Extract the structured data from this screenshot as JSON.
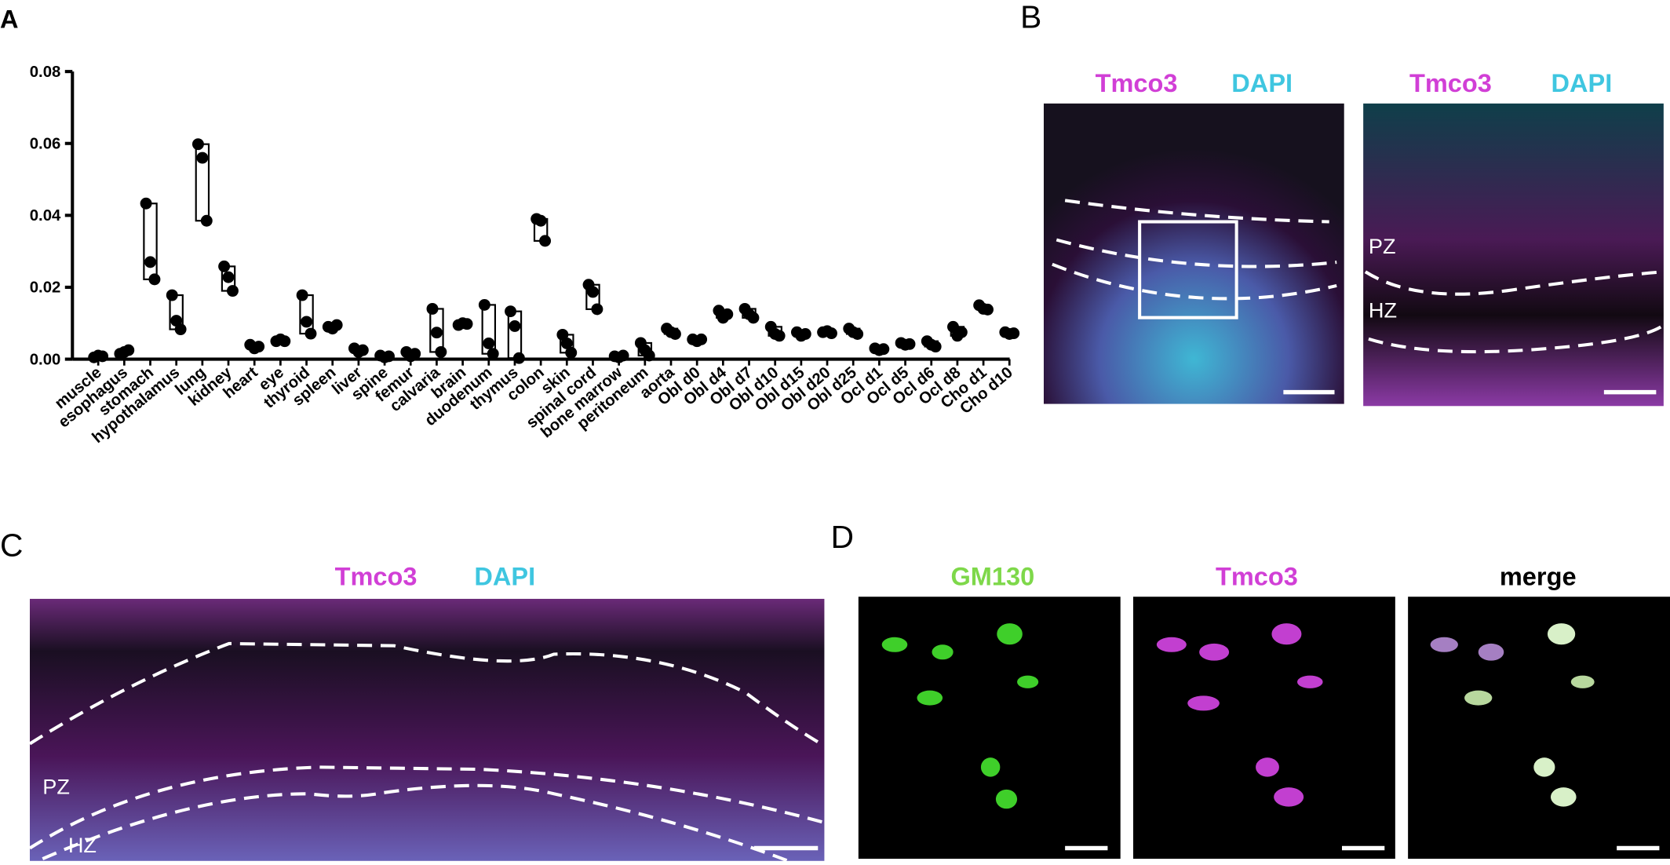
{
  "chart_data": {
    "type": "floating-box",
    "panel": "A",
    "categories": [
      "muscle",
      "esophagus",
      "stomach",
      "hypothalamus",
      "lung",
      "kidney",
      "heart",
      "eye",
      "thyroid",
      "spleen",
      "liver",
      "spine",
      "femur",
      "calvaria",
      "brain",
      "duodenum",
      "thymus",
      "colon",
      "skin",
      "spinal cord",
      "bone marrow",
      "peritoneum",
      "aorta",
      "Obl d0",
      "Obl d4",
      "Obl d7",
      "Obl d10",
      "Obl d15",
      "Obl d20",
      "Obl d25",
      "Ocl d1",
      "Ocl d5",
      "Ocl d6",
      "Ocl d8",
      "Cho d1",
      "Cho d10"
    ],
    "values": [
      [
        0.0005,
        0.001,
        0.0008
      ],
      [
        0.0015,
        0.002,
        0.0025
      ],
      [
        0.0433,
        0.027,
        0.0222
      ],
      [
        0.0178,
        0.0107,
        0.0083
      ],
      [
        0.0598,
        0.056,
        0.0385
      ],
      [
        0.0258,
        0.0228,
        0.019
      ],
      [
        0.004,
        0.003,
        0.0035
      ],
      [
        0.005,
        0.0055,
        0.005
      ],
      [
        0.0178,
        0.0104,
        0.0071
      ],
      [
        0.009,
        0.0085,
        0.0095
      ],
      [
        0.003,
        0.002,
        0.0025
      ],
      [
        0.001,
        0.0005,
        0.0008
      ],
      [
        0.002,
        0.0008,
        0.0015
      ],
      [
        0.014,
        0.0074,
        0.002
      ],
      [
        0.0095,
        0.01,
        0.0098
      ],
      [
        0.0151,
        0.0044,
        0.0015
      ],
      [
        0.0133,
        0.0092,
        0.0003
      ],
      [
        0.039,
        0.0385,
        0.0329
      ],
      [
        0.0068,
        0.0044,
        0.0018
      ],
      [
        0.0207,
        0.0187,
        0.0139
      ],
      [
        0.0008,
        0.0005,
        0.001
      ],
      [
        0.0045,
        0.0025,
        0.001
      ],
      [
        0.0085,
        0.0075,
        0.007
      ],
      [
        0.0055,
        0.005,
        0.0055
      ],
      [
        0.0135,
        0.0115,
        0.0125
      ],
      [
        0.014,
        0.0125,
        0.0115
      ],
      [
        0.009,
        0.007,
        0.0065
      ],
      [
        0.0075,
        0.0065,
        0.007
      ],
      [
        0.0075,
        0.0078,
        0.0072
      ],
      [
        0.0085,
        0.0075,
        0.007
      ],
      [
        0.003,
        0.0025,
        0.0028
      ],
      [
        0.0045,
        0.004,
        0.0042
      ],
      [
        0.005,
        0.004,
        0.0035
      ],
      [
        0.009,
        0.0065,
        0.0075
      ],
      [
        0.015,
        0.014,
        0.0138
      ],
      [
        0.0075,
        0.007,
        0.0072
      ]
    ],
    "ylim": [
      0,
      0.08
    ],
    "yticks": [
      {
        "value": 0,
        "label": "0.00"
      },
      0.02,
      0.04,
      0.06,
      0.08
    ],
    "color": "#000000"
  },
  "panels": {
    "B": {
      "letter": "B",
      "left": {
        "labels": [
          "Tmco3",
          "DAPI"
        ]
      },
      "right": {
        "labels": [
          "Tmco3",
          "DAPI"
        ],
        "zones": [
          "PZ",
          "HZ"
        ]
      }
    },
    "C": {
      "letter": "C",
      "labels": [
        "Tmco3",
        "DAPI"
      ],
      "zones": [
        "PZ",
        "HZ"
      ]
    },
    "D": {
      "letter": "D",
      "labels": [
        "GM130",
        "Tmco3",
        "merge"
      ]
    }
  }
}
